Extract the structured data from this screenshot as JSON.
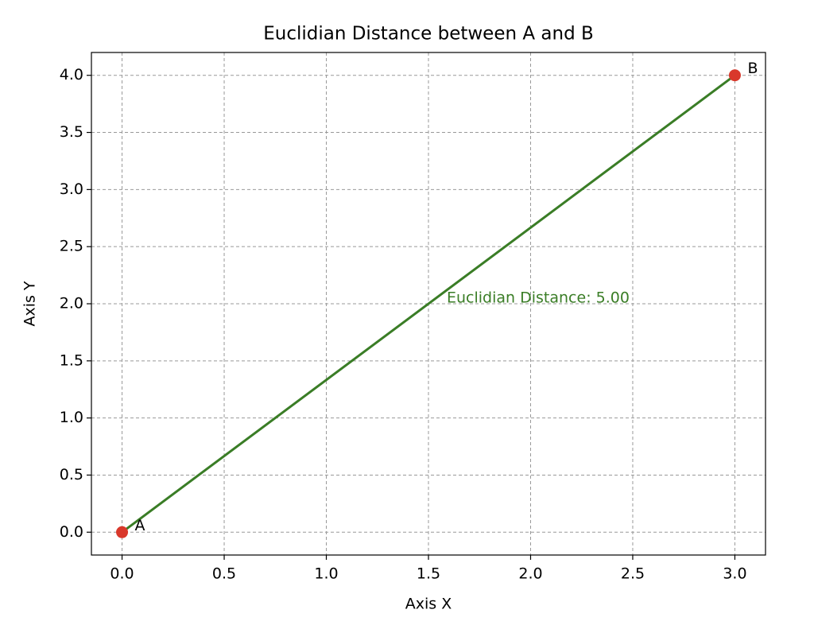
{
  "chart_data": {
    "type": "line",
    "title": "Euclidian Distance between A and B",
    "xlabel": "Axis X",
    "ylabel": "Axis Y",
    "x": [
      0,
      3
    ],
    "values": [
      0,
      4
    ],
    "line_color": "#3a7d26",
    "marker_color": "#d9382b",
    "point_labels": [
      "A",
      "B"
    ],
    "annotation": "Euclidian Distance: 5.00",
    "annotation_color": "#3a7d26",
    "xlim": [
      -0.15,
      3.15
    ],
    "ylim": [
      -0.2,
      4.2
    ],
    "xticks": [
      {
        "value": 0,
        "label": "0.0"
      },
      0.5,
      {
        "value": 1,
        "label": "1.0"
      },
      1.5,
      {
        "value": 2,
        "label": "2.0"
      },
      2.5,
      {
        "value": 3,
        "label": "3.0"
      }
    ],
    "yticks": [
      {
        "value": 0,
        "label": "0.0"
      },
      0.5,
      {
        "value": 1,
        "label": "1.0"
      },
      1.5,
      {
        "value": 2,
        "label": "2.0"
      },
      2.5,
      {
        "value": 3,
        "label": "3.0"
      },
      3.5,
      {
        "value": 4,
        "label": "4.0"
      }
    ],
    "grid": true
  }
}
